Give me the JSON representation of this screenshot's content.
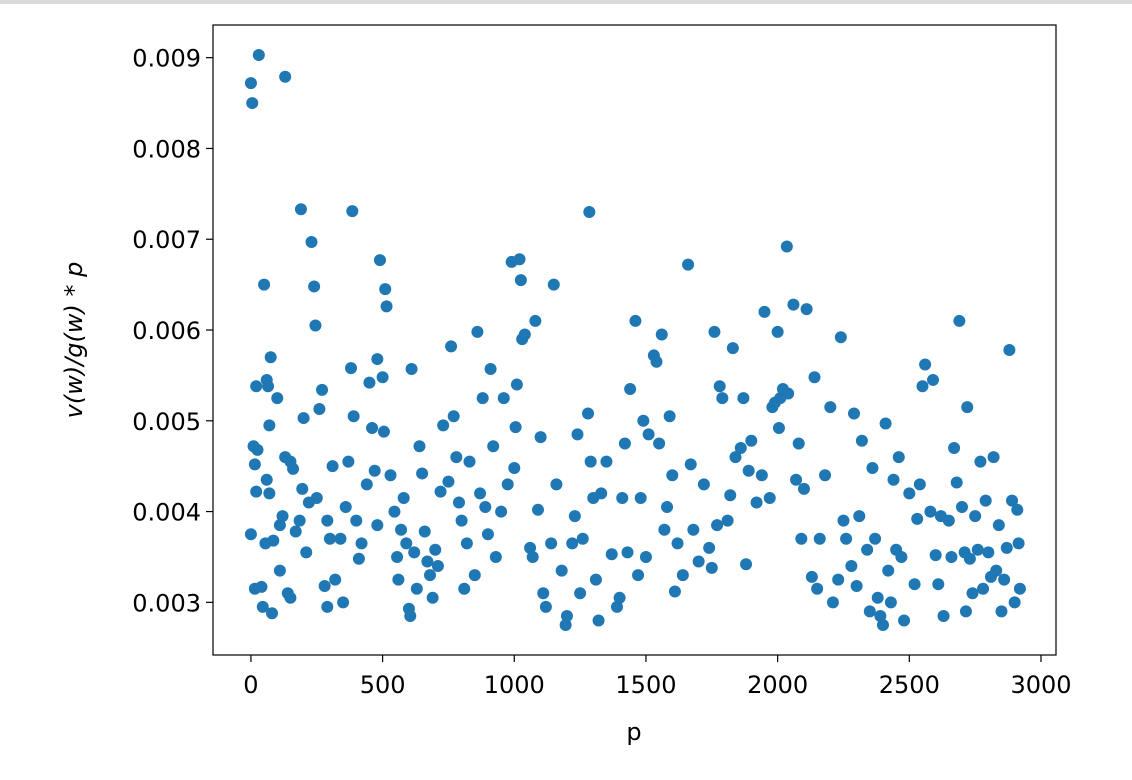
{
  "chart_data": {
    "type": "scatter",
    "xlabel": "p",
    "ylabel": "v(w)/g(w) * p",
    "xlim": [
      -144,
      3057
    ],
    "ylim": [
      0.00242,
      0.00936
    ],
    "xticks": [
      0,
      500,
      1000,
      1500,
      2000,
      2500,
      3000
    ],
    "yticks": [
      0.003,
      0.004,
      0.005,
      0.006,
      0.007,
      0.008,
      0.009
    ],
    "color": "#1f77b4",
    "x": [
      0,
      5,
      30,
      130,
      20,
      10,
      15,
      20,
      0,
      25,
      15,
      40,
      45,
      50,
      60,
      65,
      75,
      70,
      60,
      55,
      80,
      70,
      85,
      100,
      110,
      110,
      120,
      130,
      140,
      150,
      150,
      160,
      170,
      185,
      190,
      195,
      200,
      210,
      220,
      230,
      240,
      245,
      250,
      260,
      270,
      280,
      290,
      290,
      300,
      310,
      320,
      340,
      350,
      360,
      370,
      380,
      385,
      390,
      400,
      410,
      420,
      440,
      450,
      460,
      470,
      480,
      480,
      490,
      500,
      505,
      510,
      515,
      530,
      545,
      555,
      560,
      570,
      580,
      590,
      600,
      605,
      610,
      620,
      630,
      640,
      650,
      660,
      670,
      680,
      690,
      700,
      710,
      720,
      730,
      750,
      760,
      770,
      780,
      790,
      800,
      810,
      820,
      830,
      850,
      860,
      870,
      880,
      890,
      900,
      910,
      920,
      930,
      950,
      960,
      975,
      990,
      1000,
      1005,
      1010,
      1020,
      1025,
      1030,
      1040,
      1060,
      1070,
      1080,
      1090,
      1100,
      1110,
      1120,
      1140,
      1150,
      1160,
      1180,
      1195,
      1200,
      1220,
      1230,
      1240,
      1250,
      1260,
      1280,
      1285,
      1290,
      1300,
      1310,
      1320,
      1330,
      1350,
      1370,
      1390,
      1400,
      1410,
      1420,
      1430,
      1440,
      1460,
      1470,
      1480,
      1490,
      1500,
      1510,
      1530,
      1540,
      1550,
      1560,
      1570,
      1580,
      1590,
      1600,
      1610,
      1620,
      1640,
      1660,
      1670,
      1680,
      1700,
      1720,
      1740,
      1750,
      1760,
      1770,
      1780,
      1790,
      1810,
      1820,
      1830,
      1840,
      1860,
      1870,
      1880,
      1890,
      1900,
      1920,
      1940,
      1950,
      1970,
      1980,
      1990,
      2000,
      2005,
      2010,
      2020,
      2035,
      2040,
      2060,
      2070,
      2080,
      2090,
      2100,
      2110,
      2130,
      2140,
      2150,
      2160,
      2180,
      2200,
      2210,
      2230,
      2240,
      2250,
      2260,
      2280,
      2290,
      2300,
      2310,
      2320,
      2340,
      2350,
      2360,
      2370,
      2380,
      2390,
      2400,
      2410,
      2420,
      2430,
      2440,
      2450,
      2460,
      2470,
      2480,
      2500,
      2520,
      2530,
      2540,
      2550,
      2560,
      2580,
      2590,
      2600,
      2610,
      2620,
      2630,
      2650,
      2660,
      2670,
      2680,
      2690,
      2700,
      2710,
      2715,
      2720,
      2730,
      2740,
      2750,
      2760,
      2770,
      2780,
      2790,
      2800,
      2810,
      2820,
      2830,
      2840,
      2850,
      2860,
      2870,
      2880,
      2890,
      2900,
      2910,
      2915,
      2920
    ],
    "values": [
      0.00872,
      0.0085,
      0.00903,
      0.00879,
      0.00538,
      0.00472,
      0.00452,
      0.00422,
      0.00375,
      0.00468,
      0.00315,
      0.00317,
      0.00295,
      0.0065,
      0.00545,
      0.00538,
      0.0057,
      0.00495,
      0.00435,
      0.00365,
      0.00288,
      0.0042,
      0.00368,
      0.00525,
      0.00385,
      0.00335,
      0.00395,
      0.0046,
      0.0031,
      0.00305,
      0.00455,
      0.00447,
      0.00378,
      0.0039,
      0.00733,
      0.00425,
      0.00503,
      0.00355,
      0.0041,
      0.00697,
      0.00648,
      0.00605,
      0.00415,
      0.00513,
      0.00534,
      0.00318,
      0.00295,
      0.0039,
      0.0037,
      0.0045,
      0.00325,
      0.0037,
      0.003,
      0.00405,
      0.00455,
      0.00558,
      0.00731,
      0.00505,
      0.0039,
      0.00348,
      0.00365,
      0.0043,
      0.00542,
      0.00492,
      0.00445,
      0.00568,
      0.00385,
      0.00677,
      0.00548,
      0.00488,
      0.00645,
      0.00626,
      0.0044,
      0.004,
      0.0035,
      0.00325,
      0.0038,
      0.00415,
      0.00365,
      0.00293,
      0.00285,
      0.00557,
      0.00355,
      0.00315,
      0.00472,
      0.00442,
      0.00378,
      0.00345,
      0.0033,
      0.00305,
      0.00358,
      0.0034,
      0.00422,
      0.00495,
      0.00433,
      0.00582,
      0.00505,
      0.0046,
      0.0041,
      0.0039,
      0.00315,
      0.00365,
      0.00455,
      0.0033,
      0.00598,
      0.0042,
      0.00525,
      0.00405,
      0.00375,
      0.00557,
      0.00472,
      0.0035,
      0.004,
      0.00525,
      0.0043,
      0.00675,
      0.00448,
      0.00493,
      0.0054,
      0.00678,
      0.00655,
      0.0059,
      0.00595,
      0.0036,
      0.0035,
      0.0061,
      0.00402,
      0.00482,
      0.0031,
      0.00295,
      0.00365,
      0.0065,
      0.0043,
      0.00335,
      0.00275,
      0.00285,
      0.00365,
      0.00395,
      0.00485,
      0.0031,
      0.0037,
      0.00508,
      0.0073,
      0.00455,
      0.00415,
      0.00325,
      0.0028,
      0.0042,
      0.00455,
      0.00353,
      0.00295,
      0.00305,
      0.00415,
      0.00475,
      0.00355,
      0.00535,
      0.0061,
      0.0033,
      0.00415,
      0.005,
      0.0035,
      0.00485,
      0.00572,
      0.00565,
      0.00475,
      0.00595,
      0.0038,
      0.00405,
      0.00505,
      0.0044,
      0.00312,
      0.00365,
      0.0033,
      0.00672,
      0.00452,
      0.0038,
      0.00345,
      0.0043,
      0.0036,
      0.00338,
      0.00598,
      0.00385,
      0.00538,
      0.00525,
      0.0039,
      0.00418,
      0.0058,
      0.0046,
      0.0047,
      0.00525,
      0.00342,
      0.00445,
      0.00478,
      0.0041,
      0.0044,
      0.0062,
      0.00415,
      0.00515,
      0.0052,
      0.00598,
      0.00492,
      0.00525,
      0.00535,
      0.00692,
      0.0053,
      0.00628,
      0.00435,
      0.00475,
      0.0037,
      0.00425,
      0.00623,
      0.00328,
      0.00548,
      0.00315,
      0.0037,
      0.0044,
      0.00515,
      0.003,
      0.00325,
      0.00592,
      0.0039,
      0.0037,
      0.0034,
      0.00508,
      0.00318,
      0.00395,
      0.00478,
      0.00358,
      0.0029,
      0.00448,
      0.0037,
      0.00305,
      0.00285,
      0.00275,
      0.00497,
      0.00335,
      0.003,
      0.00435,
      0.00358,
      0.0046,
      0.0035,
      0.0028,
      0.0042,
      0.0032,
      0.00392,
      0.0043,
      0.00538,
      0.00562,
      0.004,
      0.00545,
      0.00352,
      0.0032,
      0.00395,
      0.00285,
      0.0039,
      0.0035,
      0.0047,
      0.00432,
      0.0061,
      0.00405,
      0.00355,
      0.0029,
      0.00515,
      0.00348,
      0.0031,
      0.00395,
      0.00358,
      0.00455,
      0.00315,
      0.00412,
      0.00355,
      0.00328,
      0.0046,
      0.00335,
      0.00385,
      0.0029,
      0.00325,
      0.0036,
      0.00578,
      0.00412,
      0.003,
      0.00402,
      0.00365,
      0.00315
    ]
  }
}
